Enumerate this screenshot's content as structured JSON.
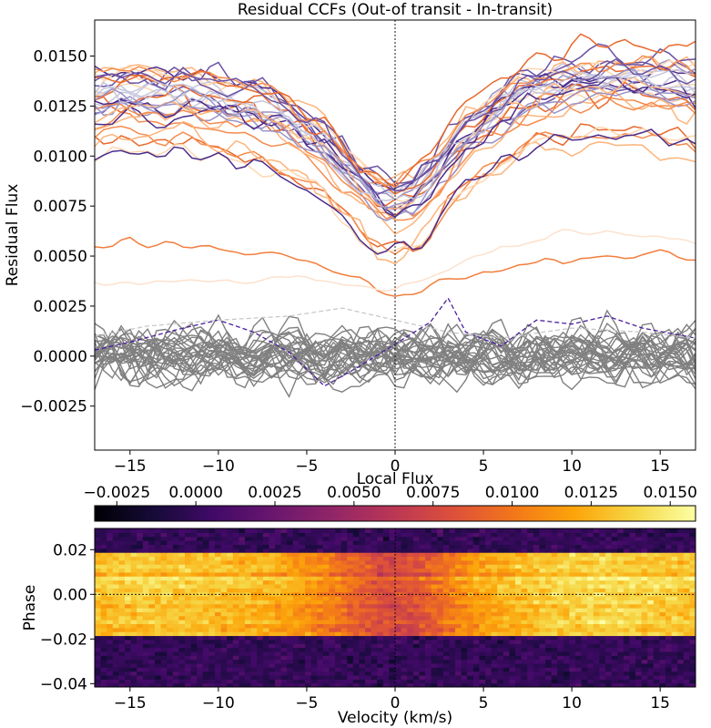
{
  "chart_data": [
    {
      "type": "line",
      "title": "Residual CCFs (Out-of transit - In-transit)",
      "xlabel": "",
      "ylabel": "Residual Flux",
      "xlim": [
        -17,
        17
      ],
      "ylim": [
        -0.0047,
        0.0168
      ],
      "xticks": [
        -15,
        -10,
        -5,
        0,
        5,
        10,
        15
      ],
      "xtick_labels": [
        "−15",
        "−10",
        "−5",
        "0",
        "5",
        "10",
        "15"
      ],
      "yticks": [
        -0.0025,
        0.0,
        0.0025,
        0.005,
        0.0075,
        0.01,
        0.0125,
        0.015
      ],
      "ytick_labels": [
        "−0.0025",
        "0.0000",
        "0.0025",
        "0.0050",
        "0.0075",
        "0.0100",
        "0.0125",
        "0.0150"
      ],
      "reference_line_x": 0,
      "in_transit_series": {
        "count": 32,
        "velocity": [
          -17,
          -15,
          -12,
          -10,
          -8,
          -6,
          -4,
          -3,
          -2,
          -1,
          0,
          1,
          2,
          3,
          4,
          6,
          8,
          10,
          12,
          14,
          17
        ],
        "mean_profile": [
          0.0132,
          0.0134,
          0.0133,
          0.013,
          0.0127,
          0.012,
          0.0108,
          0.0098,
          0.0089,
          0.0082,
          0.0078,
          0.0081,
          0.009,
          0.0101,
          0.0112,
          0.0125,
          0.0133,
          0.0137,
          0.0139,
          0.0137,
          0.0133
        ],
        "colors": [
          "#ffd7b0",
          "#fdb47a",
          "#f58c4e",
          "#e9692c",
          "#c6c6de",
          "#9a93c7",
          "#6a51a3",
          "#4b2c8a"
        ]
      },
      "low_series": [
        {
          "name": "orange-low",
          "color": "#f27d3c",
          "velocity": [
            -17,
            -15,
            -10,
            -5,
            -1,
            0,
            3,
            6,
            10,
            15,
            17
          ],
          "values": [
            0.0054,
            0.0058,
            0.0054,
            0.0049,
            0.0034,
            0.0031,
            0.0037,
            0.0044,
            0.0048,
            0.0052,
            0.0047
          ]
        },
        {
          "name": "peach-low",
          "color": "#fde1cd",
          "velocity": [
            -17,
            -15,
            -10,
            -5,
            -1,
            0,
            3,
            6,
            10,
            15,
            17
          ],
          "values": [
            0.0035,
            0.0038,
            0.0037,
            0.0039,
            0.0034,
            0.0033,
            0.0043,
            0.0055,
            0.0062,
            0.0059,
            0.0056
          ]
        }
      ],
      "out_of_transit_series": {
        "count": 30,
        "color": "#808080",
        "mean": 0.0,
        "spread": 0.0011
      },
      "dashed_series": [
        {
          "name": "dashed-purple",
          "color": "#4b1f9f",
          "velocity": [
            -17,
            -15,
            -12,
            -10,
            -8,
            -6,
            -4,
            -2,
            0,
            2,
            3,
            4,
            6,
            8,
            10,
            12,
            14,
            17
          ],
          "values": [
            0.0003,
            0.0007,
            0.0014,
            0.0018,
            0.0012,
            0.0002,
            -0.0015,
            -0.0005,
            0.0006,
            0.0017,
            0.0029,
            0.0012,
            0.0005,
            0.0018,
            0.0016,
            0.002,
            0.0014,
            0.0009
          ]
        },
        {
          "name": "dashed-grey",
          "color": "#c8c8c8",
          "velocity": [
            -17,
            -14,
            -10,
            -6,
            -3,
            0,
            3,
            6,
            10,
            14,
            17
          ],
          "values": [
            0.001,
            0.0015,
            0.0018,
            0.002,
            0.0024,
            0.0018,
            0.0012,
            0.0009,
            0.0014,
            0.0012,
            0.0009
          ]
        }
      ]
    },
    {
      "type": "heatmap",
      "colorbar_label": "Local Flux",
      "colorbar_range": [
        -0.0032,
        0.0158
      ],
      "colorbar_ticks": [
        -0.0025,
        0.0,
        0.0025,
        0.005,
        0.0075,
        0.01,
        0.0125,
        0.015
      ],
      "colorbar_tick_labels": [
        "−0.0025",
        "0.0000",
        "0.0025",
        "0.0050",
        "0.0075",
        "0.0100",
        "0.0125",
        "0.0150"
      ],
      "colormap": "inferno",
      "xlabel": "Velocity (km/s)",
      "ylabel": "Phase",
      "xlim": [
        -17,
        17
      ],
      "ylim": [
        -0.0415,
        0.0295
      ],
      "xticks": [
        -15,
        -10,
        -5,
        0,
        5,
        10,
        15
      ],
      "xtick_labels": [
        "−15",
        "−10",
        "−5",
        "0",
        "5",
        "10",
        "15"
      ],
      "yticks": [
        -0.04,
        -0.02,
        0.0,
        0.02
      ],
      "ytick_labels": [
        "−0.04",
        "−0.02",
        "0.00",
        "0.02"
      ],
      "in_transit_phase_range": [
        -0.0193,
        0.0193
      ],
      "out_of_transit_level": 0.0,
      "in_transit_profile": {
        "velocity": [
          -17,
          -15,
          -12,
          -10,
          -8,
          -6,
          -4,
          -3,
          -2,
          -1,
          0,
          1,
          2,
          3,
          4,
          6,
          8,
          10,
          12,
          14,
          17
        ],
        "values": [
          0.0132,
          0.0134,
          0.0133,
          0.013,
          0.0127,
          0.012,
          0.0108,
          0.0098,
          0.0089,
          0.0082,
          0.0078,
          0.0081,
          0.009,
          0.0101,
          0.0112,
          0.0125,
          0.0133,
          0.0137,
          0.0139,
          0.0137,
          0.0133
        ]
      },
      "reference_line_x": 0,
      "reference_line_y": 0
    }
  ]
}
